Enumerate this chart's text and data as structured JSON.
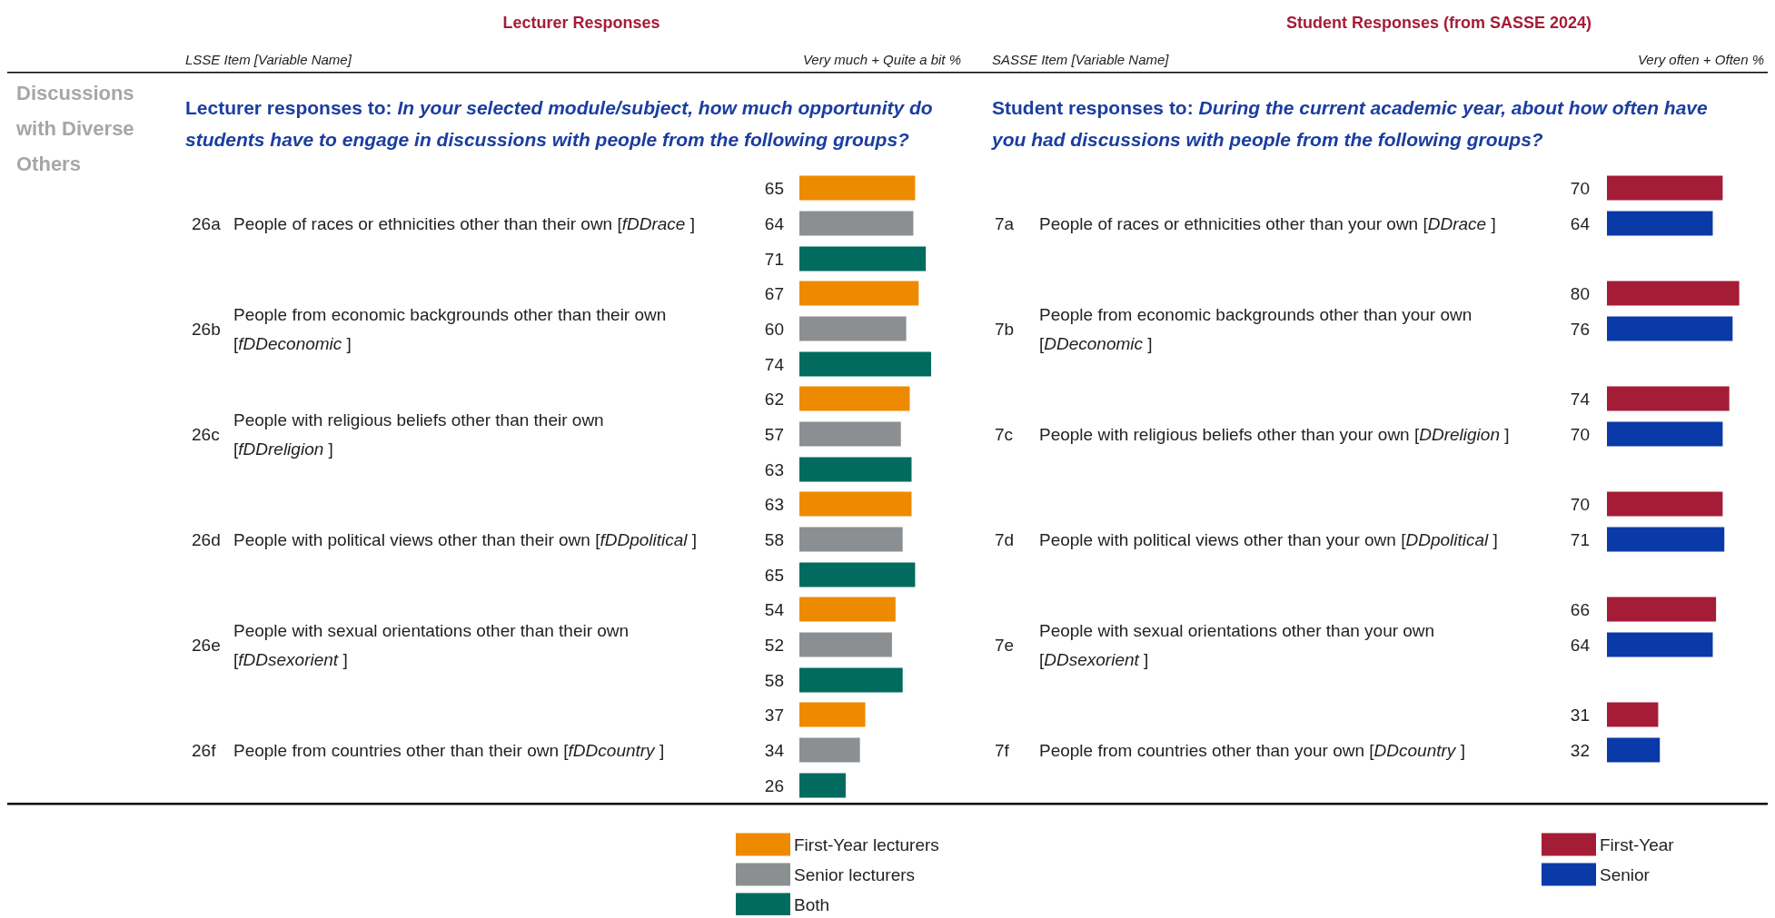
{
  "chart_data": [
    {
      "type": "bar",
      "orientation": "horizontal",
      "title": "Lecturer Responses",
      "subtitle": "Lecturer responses to: In your selected module/subject, how much opportunity do students have to engage in discussions with people from the following groups?",
      "ylabel": "LSSE Item [Variable Name]",
      "xlabel": "Very much + Quite a bit %",
      "categories": [
        "People of races or ethnicities other than their own [fDDrace ]",
        "People from economic backgrounds other than their own [fDDeconomic ]",
        "People with religious beliefs other than their own [fDDreligion ]",
        "People with political views other than their own [fDDpolitical ]",
        "People with sexual orientations other than their own [fDDsexorient ]",
        "People from countries other than their own [fDDcountry ]"
      ],
      "series": [
        {
          "name": "First-Year lecturers",
          "color": "#ee8a00",
          "values": [
            65,
            67,
            62,
            63,
            54,
            37
          ]
        },
        {
          "name": "Senior lecturers",
          "color": "#8c8f91",
          "values": [
            64,
            60,
            57,
            58,
            52,
            34
          ]
        },
        {
          "name": "Both",
          "color": "#006b5e",
          "values": [
            71,
            74,
            63,
            65,
            58,
            26
          ]
        }
      ],
      "data_labels": true,
      "legend": "bottom",
      "annotations": [
        "Discussions with Diverse Others",
        "26a",
        "26b",
        "26c",
        "26d",
        "26e",
        "26f"
      ]
    },
    {
      "type": "bar",
      "orientation": "horizontal",
      "title": "Student Responses (from SASSE 2024)",
      "subtitle": "Student responses to: During the current academic year, about how often have you had discussions with people from the following groups?",
      "ylabel": "SASSE Item [Variable Name]",
      "xlabel": "Very often + Often %",
      "categories": [
        "People of races or ethnicities other than your own [DDrace ]",
        "People from economic backgrounds other than your own [DDeconomic ]",
        "People with religious beliefs other than your own [DDreligion ]",
        "People with political views other than your own [DDpolitical ]",
        "People with sexual orientations other than your own [DDsexorient ]",
        "People from countries other than your own [DDcountry ]"
      ],
      "series": [
        {
          "name": "First-Year",
          "color": "#a51c36",
          "values": [
            70,
            80,
            74,
            70,
            66,
            31
          ]
        },
        {
          "name": "Senior",
          "color": "#0a3aa8",
          "values": [
            64,
            76,
            70,
            71,
            64,
            32
          ]
        }
      ],
      "data_labels": true,
      "legend": "bottom",
      "annotations": [
        "7a",
        "7b",
        "7c",
        "7d",
        "7e",
        "7f"
      ]
    }
  ]
}
